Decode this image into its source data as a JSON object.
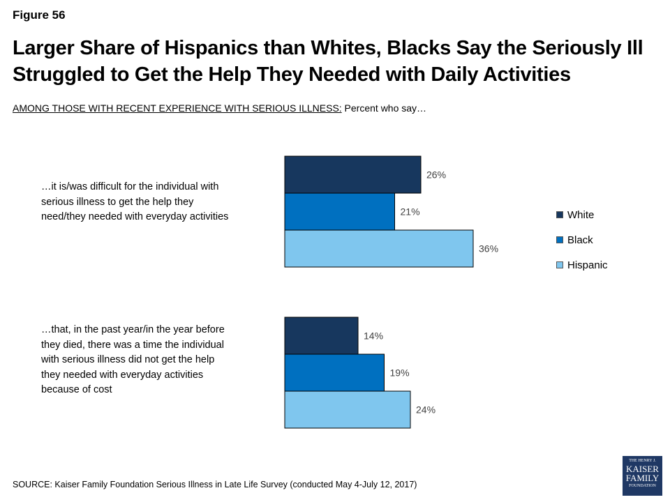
{
  "figure_label": "Figure 56",
  "title": "Larger Share of Hispanics than Whites, Blacks Say the Seriously Ill Struggled to Get the Help They Needed with Daily Activities",
  "subtitle_underlined": "AMONG THOSE WITH RECENT EXPERIENCE WITH SERIOUS ILLNESS:",
  "subtitle_rest": " Percent who say…",
  "source": "SOURCE: Kaiser Family Foundation Serious Illness in Late Life Survey (conducted May 4-July 12, 2017)",
  "logo": {
    "line1": "THE HENRY J.",
    "line2": "KAISER",
    "line3": "FAMILY",
    "line4": "FOUNDATION"
  },
  "chart_data": {
    "type": "bar",
    "orientation": "horizontal",
    "categories": [
      "…it is/was difficult for the individual with serious illness to get the help they need/they needed with everyday activities",
      "…that, in the past year/in the year before they died, there was a time the individual with serious illness did not get the help they needed with everyday activities because of cost"
    ],
    "series": [
      {
        "name": "White",
        "color": "#17375e",
        "values": [
          26,
          14
        ],
        "labels": [
          "26%",
          "14%"
        ]
      },
      {
        "name": "Black",
        "color": "#0070c0",
        "values": [
          21,
          19
        ],
        "labels": [
          "21%",
          "19%"
        ]
      },
      {
        "name": "Hispanic",
        "color": "#7fc6ee",
        "values": [
          36,
          24
        ],
        "labels": [
          "36%",
          "24%"
        ]
      }
    ],
    "legend_position": "right",
    "grid": false
  }
}
